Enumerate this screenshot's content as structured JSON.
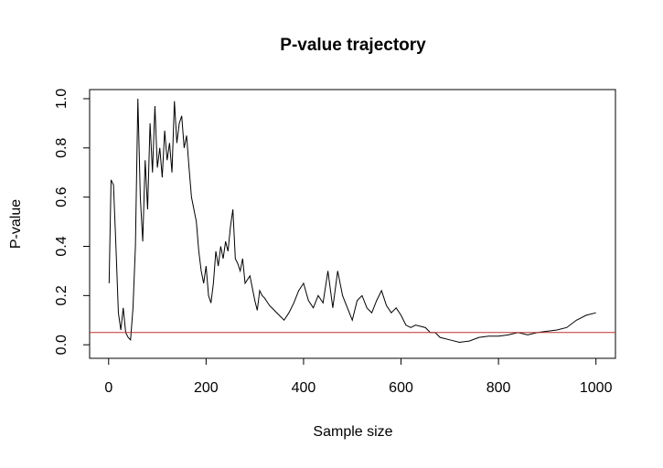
{
  "chart_data": {
    "type": "line",
    "title": "P-value trajectory",
    "x_label": "Sample size",
    "y_label": "P-value",
    "x": [
      1,
      5,
      10,
      15,
      20,
      25,
      30,
      35,
      40,
      45,
      50,
      55,
      60,
      65,
      70,
      75,
      80,
      85,
      90,
      95,
      100,
      105,
      110,
      115,
      120,
      125,
      130,
      135,
      140,
      145,
      150,
      155,
      160,
      165,
      170,
      180,
      185,
      190,
      195,
      200,
      205,
      210,
      215,
      220,
      225,
      230,
      235,
      240,
      245,
      250,
      255,
      260,
      265,
      270,
      275,
      280,
      290,
      300,
      305,
      310,
      315,
      320,
      330,
      340,
      350,
      360,
      370,
      380,
      390,
      400,
      410,
      420,
      430,
      440,
      450,
      460,
      470,
      480,
      490,
      500,
      510,
      520,
      530,
      540,
      550,
      560,
      570,
      580,
      590,
      600,
      610,
      620,
      630,
      650,
      660,
      670,
      680,
      700,
      720,
      740,
      760,
      780,
      800,
      820,
      840,
      860,
      880,
      900,
      920,
      940,
      960,
      980,
      1000
    ],
    "values": [
      0.25,
      0.67,
      0.65,
      0.4,
      0.13,
      0.06,
      0.15,
      0.05,
      0.03,
      0.02,
      0.15,
      0.4,
      1.0,
      0.6,
      0.42,
      0.75,
      0.55,
      0.9,
      0.7,
      0.97,
      0.72,
      0.8,
      0.68,
      0.87,
      0.75,
      0.82,
      0.7,
      0.99,
      0.82,
      0.9,
      0.93,
      0.8,
      0.85,
      0.72,
      0.6,
      0.5,
      0.38,
      0.3,
      0.25,
      0.32,
      0.2,
      0.17,
      0.25,
      0.38,
      0.32,
      0.4,
      0.35,
      0.42,
      0.38,
      0.48,
      0.55,
      0.35,
      0.33,
      0.3,
      0.35,
      0.25,
      0.28,
      0.18,
      0.14,
      0.22,
      0.2,
      0.19,
      0.16,
      0.14,
      0.12,
      0.1,
      0.13,
      0.17,
      0.22,
      0.25,
      0.18,
      0.15,
      0.2,
      0.17,
      0.3,
      0.15,
      0.3,
      0.2,
      0.15,
      0.1,
      0.18,
      0.2,
      0.15,
      0.13,
      0.18,
      0.22,
      0.16,
      0.13,
      0.15,
      0.12,
      0.08,
      0.07,
      0.08,
      0.07,
      0.05,
      0.05,
      0.03,
      0.02,
      0.01,
      0.015,
      0.03,
      0.035,
      0.035,
      0.04,
      0.05,
      0.04,
      0.05,
      0.055,
      0.06,
      0.07,
      0.1,
      0.12,
      0.13
    ],
    "color": "#000000",
    "reference_line": {
      "y": 0.05,
      "color": "#c03030"
    },
    "xlim": [
      -39,
      1040
    ],
    "xticks": [
      0,
      200,
      400,
      600,
      800,
      1000
    ],
    "ylim": [
      -0.055,
      1.037
    ],
    "yticks": [
      {
        "value": 0,
        "label": "0.0"
      },
      0.2,
      0.4,
      0.6,
      0.8,
      {
        "value": 1,
        "label": "1.0"
      }
    ]
  }
}
